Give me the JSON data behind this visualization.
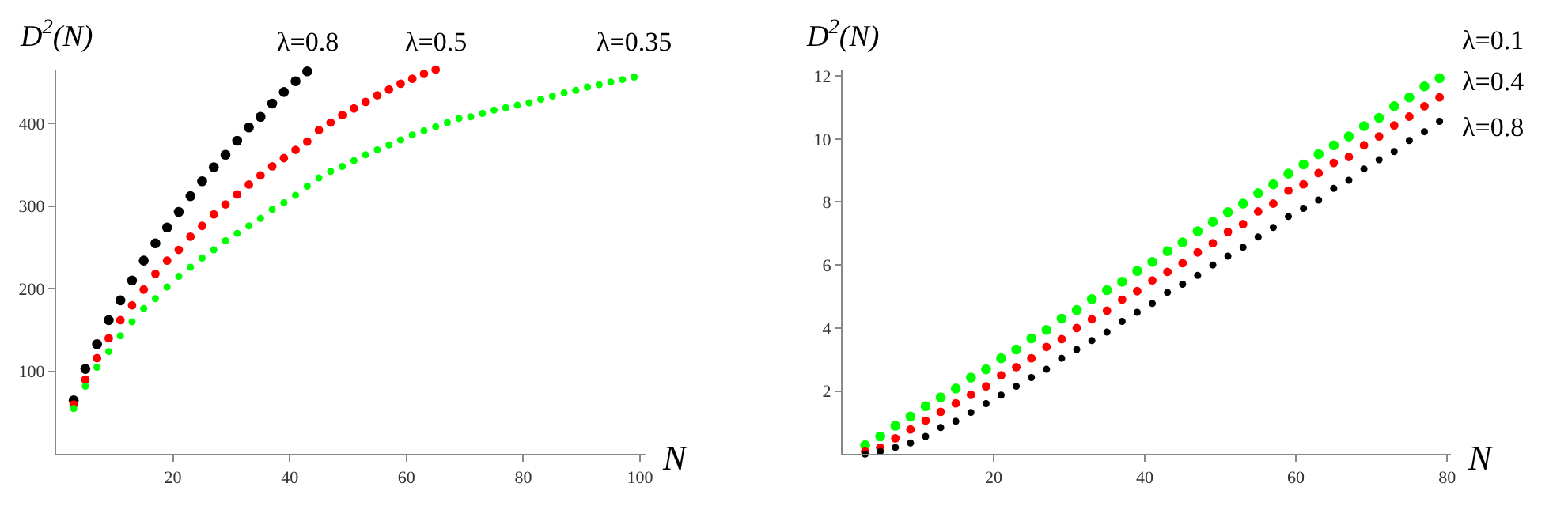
{
  "chart_data": [
    {
      "type": "scatter",
      "xlabel": "N",
      "ylabel": "D$^{2}$(N)",
      "marker": "circle",
      "xlim": [
        0,
        101
      ],
      "ylim": [
        0,
        465
      ],
      "xticks": [
        20,
        40,
        60,
        80,
        100
      ],
      "yticks": [
        100,
        200,
        300,
        400
      ],
      "x": [
        3,
        5,
        7,
        9,
        11,
        13,
        15,
        17,
        19,
        21,
        23,
        25,
        27,
        29,
        31,
        33,
        35,
        37,
        39,
        41,
        43,
        45,
        47,
        49,
        51,
        53,
        55,
        57,
        59,
        61,
        63,
        65,
        67,
        69,
        71,
        73,
        75,
        77,
        79,
        81,
        83,
        85,
        87,
        89,
        91,
        93,
        95,
        97,
        99
      ],
      "series": [
        {
          "name": "λ=0.8",
          "color": "#000000",
          "x": [
            3,
            5,
            7,
            9,
            11,
            13,
            15,
            17,
            19,
            21,
            23,
            25,
            27,
            29,
            31,
            33,
            35,
            37,
            39,
            41,
            43
          ],
          "values": [
            65,
            103,
            133,
            162,
            186,
            210,
            234,
            255,
            274,
            293,
            312,
            330,
            347,
            362,
            379,
            395,
            408,
            424,
            438,
            451,
            463
          ]
        },
        {
          "name": "λ=0.5",
          "color": "#ff0000",
          "x": [
            3,
            5,
            7,
            9,
            11,
            13,
            15,
            17,
            19,
            21,
            23,
            25,
            27,
            29,
            31,
            33,
            35,
            37,
            39,
            41,
            43,
            45,
            47,
            49,
            51,
            53,
            55,
            57,
            59,
            61,
            63,
            65
          ],
          "values": [
            60,
            90,
            116,
            140,
            162,
            180,
            199,
            218,
            234,
            247,
            263,
            276,
            290,
            302,
            314,
            326,
            337,
            348,
            358,
            368,
            378,
            392,
            401,
            410,
            418,
            426,
            434,
            441,
            448,
            454,
            460,
            465
          ]
        },
        {
          "name": "λ=0.35",
          "color": "#00ff00",
          "values": [
            55,
            82,
            105,
            124,
            143,
            160,
            176,
            188,
            202,
            215,
            226,
            237,
            247,
            258,
            267,
            276,
            285,
            296,
            304,
            313,
            324,
            334,
            342,
            348,
            355,
            362,
            368,
            374,
            380,
            386,
            391,
            396,
            401,
            406,
            408,
            412,
            416,
            419,
            422,
            425,
            429,
            433,
            437,
            440,
            444,
            447,
            450,
            453,
            456
          ]
        }
      ]
    },
    {
      "type": "scatter",
      "xlabel": "N",
      "ylabel": "D$^{2}$(N)",
      "marker": "circle",
      "xlim": [
        0,
        80.5
      ],
      "ylim": [
        0,
        12.2
      ],
      "xticks": [
        20,
        40,
        60,
        80
      ],
      "yticks": [
        2,
        4,
        6,
        8,
        10,
        12
      ],
      "x": [
        3,
        5,
        7,
        9,
        11,
        13,
        15,
        17,
        19,
        21,
        23,
        25,
        27,
        29,
        31,
        33,
        35,
        37,
        39,
        41,
        43,
        45,
        47,
        49,
        51,
        53,
        55,
        57,
        59,
        61,
        63,
        65,
        67,
        69,
        71,
        73,
        75,
        77,
        79
      ],
      "series": [
        {
          "name": "λ=0.1",
          "color": "#00ff00",
          "values": [
            0.28,
            0.56,
            0.9,
            1.19,
            1.52,
            1.8,
            2.08,
            2.43,
            2.69,
            3.04,
            3.32,
            3.67,
            3.94,
            4.3,
            4.57,
            4.92,
            5.2,
            5.47,
            5.81,
            6.1,
            6.44,
            6.72,
            7.07,
            7.37,
            7.68,
            7.95,
            8.28,
            8.56,
            8.9,
            9.19,
            9.52,
            9.8,
            10.08,
            10.41,
            10.67,
            11.04,
            11.32,
            11.67,
            11.93
          ]
        },
        {
          "name": "λ=0.4",
          "color": "#ff0000",
          "values": [
            0.08,
            0.2,
            0.5,
            0.78,
            1.06,
            1.34,
            1.61,
            1.88,
            2.15,
            2.5,
            2.76,
            3.04,
            3.4,
            3.65,
            4.0,
            4.28,
            4.55,
            4.9,
            5.17,
            5.51,
            5.78,
            6.06,
            6.4,
            6.69,
            7.05,
            7.3,
            7.7,
            7.95,
            8.36,
            8.56,
            8.92,
            9.24,
            9.43,
            9.8,
            10.08,
            10.43,
            10.71,
            11.04,
            11.32
          ]
        },
        {
          "name": "λ=0.8",
          "color": "#000000",
          "values": [
            0,
            0.08,
            0.21,
            0.35,
            0.56,
            0.84,
            1.04,
            1.32,
            1.6,
            1.87,
            2.15,
            2.43,
            2.69,
            3.04,
            3.32,
            3.6,
            3.87,
            4.21,
            4.5,
            4.78,
            5.13,
            5.39,
            5.67,
            6.0,
            6.28,
            6.56,
            6.89,
            7.19,
            7.54,
            7.8,
            8.06,
            8.43,
            8.69,
            9.05,
            9.34,
            9.6,
            9.95,
            10.23,
            10.56
          ]
        }
      ]
    }
  ]
}
